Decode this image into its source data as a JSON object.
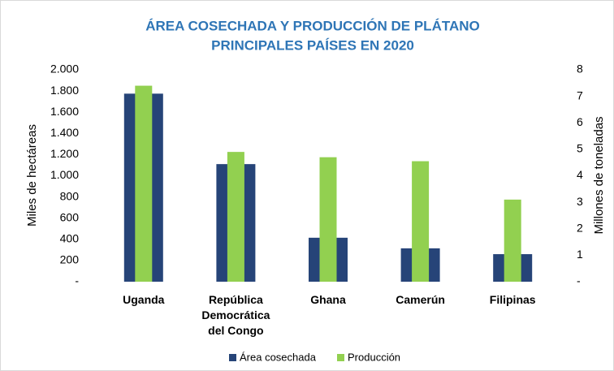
{
  "chart_data": {
    "type": "bar",
    "title": "ÁREA COSECHADA Y PRODUCCIÓN DE PLÁTANO",
    "subtitle": "PRINCIPALES PAÍSES EN 2020",
    "y_label": "Miles de hectáreas",
    "y2_label": "Millones de toneladas",
    "categories": [
      "Uganda",
      "República Democrática del Congo",
      "Ghana",
      "Camerún",
      "Filipinas"
    ],
    "series": [
      {
        "name": "Área cosechada",
        "color": "#264478",
        "values": [
          1775,
          1110,
          415,
          315,
          260
        ]
      },
      {
        "name": "Producción",
        "color": "#92d050",
        "axis": "y2",
        "values": [
          7.4,
          4.9,
          4.7,
          4.55,
          3.1
        ]
      }
    ],
    "ylim": [
      0,
      2000
    ],
    "yticks": [
      {
        "value": 0,
        "label": "-"
      },
      200,
      400,
      600,
      800,
      {
        "value": 1000,
        "label": "1.000"
      },
      {
        "value": 1200,
        "label": "1.200"
      },
      {
        "value": 1400,
        "label": "1.400"
      },
      {
        "value": 1600,
        "label": "1.600"
      },
      {
        "value": 1800,
        "label": "1.800"
      },
      {
        "value": 2000,
        "label": "2.000"
      }
    ],
    "y2lim": [
      0,
      8
    ],
    "y2ticks": [
      {
        "value": 0,
        "label": "-"
      },
      1,
      2,
      3,
      4,
      5,
      6,
      7,
      8
    ],
    "legend": "bottom"
  }
}
